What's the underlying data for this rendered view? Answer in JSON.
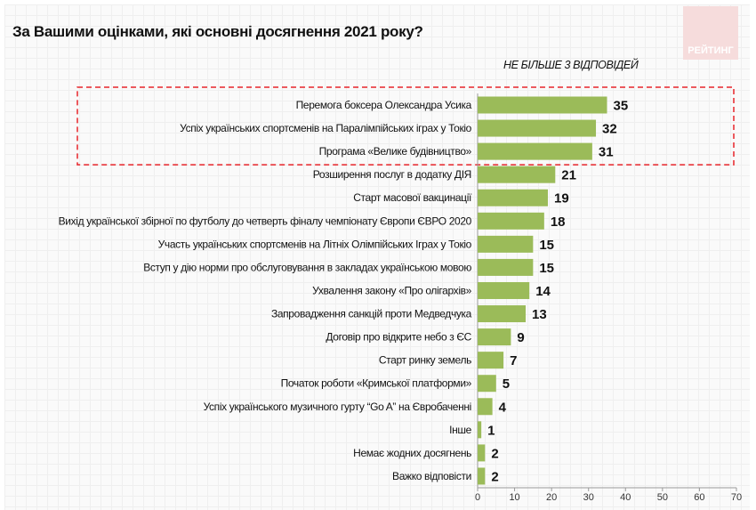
{
  "title": "За Вашими оцінками, які основні досягнення 2021 року?",
  "logo_text": "РЕЙТИНГ",
  "subtitle": "НЕ БІЛЬШЕ 3 ВІДПОВІДЕЙ",
  "colors": {
    "bar": "#9bbb59",
    "highlight_box": "#e8242a"
  },
  "chart_data": {
    "type": "bar",
    "orientation": "horizontal",
    "title": "За Вашими оцінками, які основні досягнення 2021 року?",
    "xlim": [
      0,
      70
    ],
    "xticks": [
      0,
      10,
      20,
      30,
      40,
      50,
      60,
      70
    ],
    "highlighted_top": 3,
    "categories": [
      "Перемога боксера Олександра Усика",
      "Успіх українських спортсменів на Паралімпійських іграх у Токіо",
      "Програма «Велике будівництво»",
      "Розширення послуг в додатку ДІЯ",
      "Старт масової вакцинації",
      "Вихід української збірної по футболу до четверть фіналу чемпіонату Європи ЄВРО 2020",
      "Участь українських спортсменів на Літніх Олімпійських Іграх у Токіо",
      "Вступ у дію норми про обслуговування в закладах українською мовою",
      "Ухвалення закону «Про олігархів»",
      "Запровадження санкцій проти Медведчука",
      "Договір про відкрите небо з ЄС",
      "Старт ринку земель",
      "Початок роботи «Кримської платформи»",
      "Успіх українського музичного гурту “Go A” на Євробаченні",
      "Інше",
      "Немає жодних досягнень",
      "Важко відповісти"
    ],
    "values": [
      35,
      32,
      31,
      21,
      19,
      18,
      15,
      15,
      14,
      13,
      9,
      7,
      5,
      4,
      1,
      2,
      2
    ]
  }
}
